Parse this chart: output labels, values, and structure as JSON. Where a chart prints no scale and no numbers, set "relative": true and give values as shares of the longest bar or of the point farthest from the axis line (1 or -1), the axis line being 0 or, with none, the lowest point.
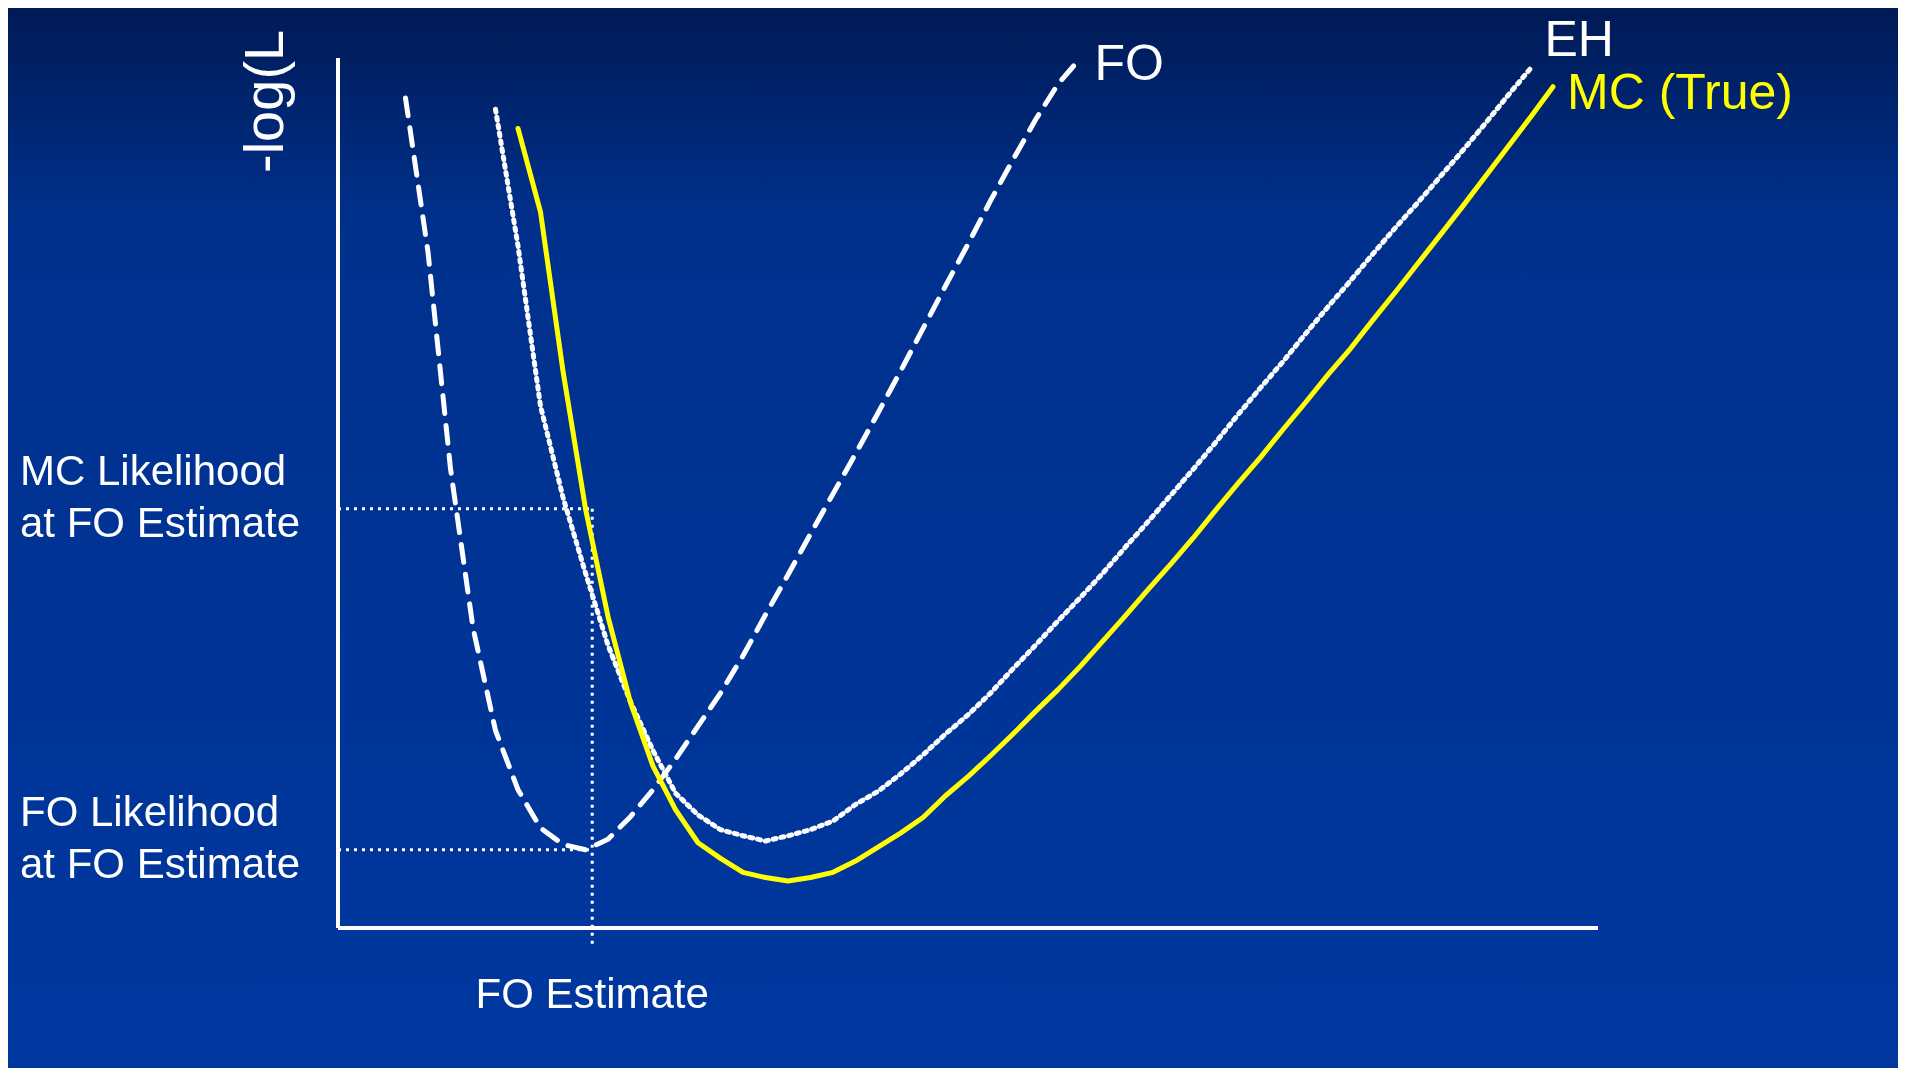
{
  "chart_data": {
    "type": "line",
    "relative": true,
    "ylabel": "-log(L",
    "legend": false,
    "categories": [
      null,
      null,
      null,
      null,
      null,
      null,
      null,
      null,
      null,
      null,
      null,
      null,
      null,
      null,
      null,
      null,
      null,
      null,
      null,
      null,
      null,
      null,
      null,
      null,
      null,
      null,
      null,
      null,
      null,
      null,
      null,
      null,
      null,
      null,
      null,
      null,
      null,
      null,
      null,
      null,
      null,
      null,
      null,
      null,
      null,
      null,
      null,
      null,
      null,
      null,
      null,
      null,
      null,
      null,
      null,
      null,
      null
    ],
    "series": [
      {
        "name": "FO",
        "color": "#ffffff",
        "line_style": "dashed",
        "values": [
          null,
          null,
          null,
          0.954,
          0.777,
          0.528,
          0.345,
          0.227,
          0.159,
          0.115,
          0.096,
          0.09,
          0.102,
          0.128,
          0.159,
          0.194,
          0.232,
          0.27,
          0.313,
          0.36,
          0.406,
          0.453,
          0.499,
          0.545,
          0.592,
          0.64,
          0.689,
          0.738,
          0.786,
          0.836,
          0.883,
          0.929,
          0.97,
          1,
          null,
          null,
          null,
          null,
          null,
          null,
          null,
          null,
          null,
          null,
          null,
          null,
          null,
          null,
          null,
          null,
          null,
          null,
          null,
          null,
          null,
          null,
          null
        ]
      },
      {
        "name": "EH",
        "color": "#ffffff",
        "line_style": "dotted",
        "values": [
          null,
          null,
          null,
          null,
          null,
          null,
          null,
          0.941,
          0.784,
          0.6,
          0.495,
          0.408,
          0.325,
          0.26,
          0.204,
          0.155,
          0.13,
          0.113,
          0.106,
          0.1,
          0.106,
          0.113,
          0.123,
          0.142,
          0.157,
          0.177,
          0.199,
          0.223,
          0.245,
          0.27,
          0.298,
          0.325,
          0.353,
          0.38,
          0.408,
          0.438,
          0.467,
          0.497,
          0.527,
          0.558,
          0.59,
          0.621,
          0.651,
          0.683,
          0.714,
          0.744,
          0.775,
          0.805,
          0.834,
          0.864,
          0.894,
          0.925,
          0.957,
          0.988,
          null,
          null,
          null
        ]
      },
      {
        "name": "MC (True)",
        "color": "#ffff00",
        "line_style": "solid",
        "values": [
          null,
          null,
          null,
          null,
          null,
          null,
          null,
          null,
          0.919,
          0.823,
          0.64,
          0.482,
          0.358,
          0.259,
          0.186,
          0.136,
          0.098,
          0.08,
          0.064,
          0.058,
          0.054,
          0.058,
          0.064,
          0.077,
          0.093,
          0.109,
          0.127,
          0.152,
          0.174,
          0.198,
          0.223,
          0.249,
          0.274,
          0.301,
          0.33,
          0.359,
          0.389,
          0.418,
          0.448,
          0.48,
          0.511,
          0.541,
          0.573,
          0.604,
          0.636,
          0.666,
          0.699,
          0.731,
          0.764,
          0.797,
          0.83,
          0.864,
          0.898,
          0.932,
          0.967,
          null,
          null
        ]
      }
    ],
    "annotations": [
      "MC Likelihood at FO Estimate",
      "FO Likelihood at FO Estimate",
      "FO Estimate"
    ]
  }
}
